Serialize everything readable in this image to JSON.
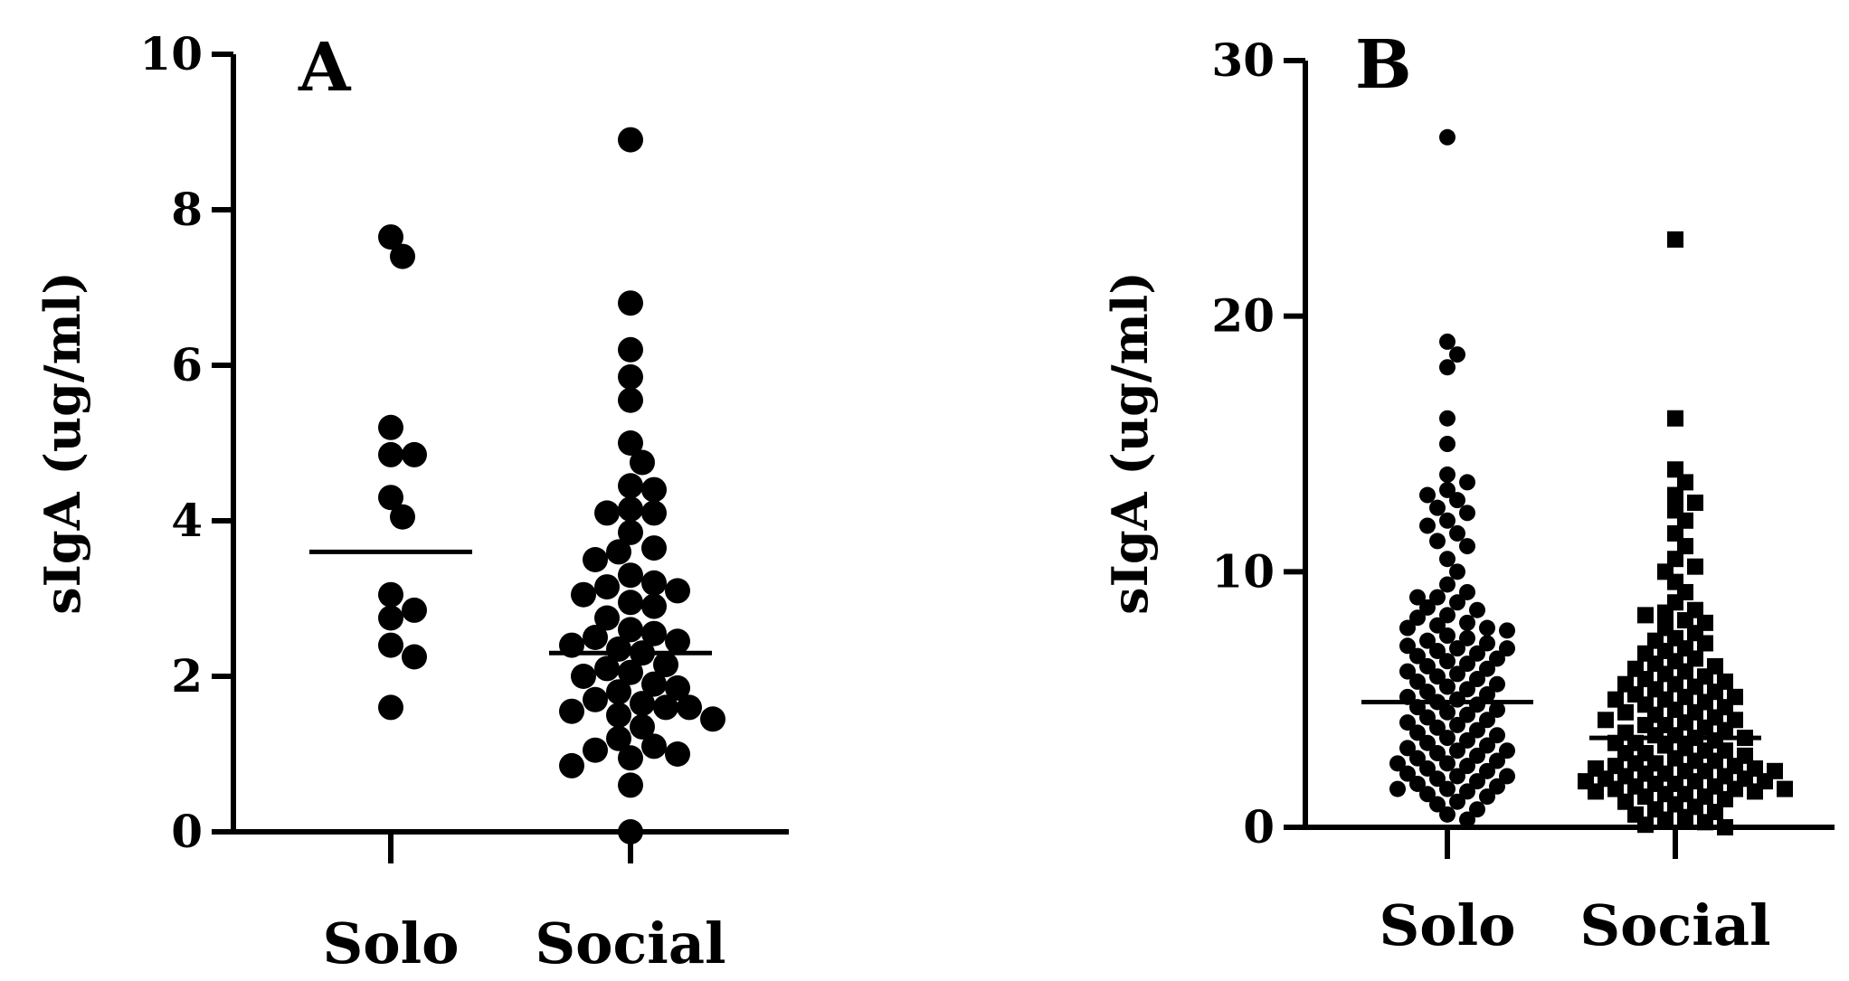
{
  "chart_data": [
    {
      "type": "scatter",
      "panel_label": "A",
      "ylabel": "sIgA (ug/ml)",
      "xlabel": "",
      "categories": [
        "Solo",
        "Social"
      ],
      "ylim": [
        0,
        10
      ],
      "yticks": [
        0,
        2,
        4,
        6,
        8,
        10
      ],
      "grid": false,
      "series": [
        {
          "category": "Solo",
          "marker": "circle",
          "mean": 3.6,
          "values": [
            7.65,
            7.4,
            5.2,
            4.85,
            4.85,
            4.3,
            4.05,
            3.05,
            2.85,
            2.75,
            2.4,
            2.25,
            1.6
          ]
        },
        {
          "category": "Social",
          "marker": "circle",
          "mean": 2.3,
          "values": [
            8.9,
            6.8,
            6.2,
            5.85,
            5.55,
            5.0,
            4.75,
            4.45,
            4.4,
            4.15,
            4.1,
            4.1,
            3.85,
            3.65,
            3.6,
            3.5,
            3.3,
            3.2,
            3.15,
            3.1,
            3.05,
            2.95,
            2.9,
            2.75,
            2.6,
            2.55,
            2.5,
            2.45,
            2.4,
            2.35,
            2.3,
            2.15,
            2.1,
            2.05,
            2.0,
            1.9,
            1.85,
            1.8,
            1.7,
            1.65,
            1.6,
            1.6,
            1.55,
            1.5,
            1.45,
            1.35,
            1.2,
            1.1,
            1.05,
            1.0,
            0.95,
            0.85,
            0.6,
            0.0
          ]
        }
      ]
    },
    {
      "type": "scatter",
      "panel_label": "B",
      "ylabel": "sIgA (ug/ml)",
      "xlabel": "",
      "categories": [
        "Solo",
        "Social"
      ],
      "ylim": [
        0,
        30
      ],
      "yticks": [
        0,
        10,
        20,
        30
      ],
      "grid": false,
      "series": [
        {
          "category": "Solo",
          "marker": "circle",
          "mean": 4.9,
          "values": [
            27.0,
            19.0,
            18.5,
            18.0,
            16.0,
            15.0,
            13.8,
            13.5,
            13.2,
            13.0,
            12.8,
            12.5,
            12.3,
            12.0,
            11.8,
            11.5,
            11.2,
            11.0,
            10.5,
            10.0,
            9.5,
            9.2,
            9.0,
            9.0,
            8.8,
            8.6,
            8.5,
            8.3,
            8.2,
            8.0,
            7.9,
            7.8,
            7.8,
            7.7,
            7.5,
            7.4,
            7.3,
            7.2,
            7.1,
            7.0,
            7.0,
            6.9,
            6.8,
            6.7,
            6.6,
            6.5,
            6.4,
            6.3,
            6.2,
            6.1,
            6.0,
            5.9,
            5.8,
            5.7,
            5.6,
            5.5,
            5.4,
            5.3,
            5.2,
            5.1,
            5.0,
            4.9,
            4.8,
            4.7,
            4.6,
            4.5,
            4.4,
            4.3,
            4.2,
            4.1,
            4.0,
            3.9,
            3.8,
            3.7,
            3.6,
            3.5,
            3.4,
            3.3,
            3.2,
            3.1,
            3.0,
            3.0,
            2.9,
            2.8,
            2.7,
            2.6,
            2.5,
            2.5,
            2.4,
            2.3,
            2.2,
            2.1,
            2.0,
            2.0,
            1.9,
            1.8,
            1.7,
            1.6,
            1.5,
            1.5,
            1.4,
            1.3,
            1.2,
            1.0,
            0.9,
            0.7,
            0.5,
            0.3
          ],
          "note_marker_size": "small"
        },
        {
          "category": "Social",
          "marker": "square",
          "mean": 3.5,
          "values": [
            23.0,
            16.0,
            14.0,
            13.5,
            13.0,
            12.7,
            12.4,
            12.0,
            11.5,
            11.0,
            10.5,
            10.2,
            10.0,
            9.6,
            9.2,
            8.8,
            8.5,
            8.3,
            8.1,
            8.0,
            7.8,
            7.6,
            7.4,
            7.2,
            7.0,
            6.9,
            6.8,
            6.6,
            6.5,
            6.4,
            6.3,
            6.2,
            6.0,
            5.9,
            5.8,
            5.7,
            5.6,
            5.5,
            5.4,
            5.3,
            5.2,
            5.1,
            5.0,
            5.0,
            4.9,
            4.8,
            4.7,
            4.6,
            4.5,
            4.5,
            4.4,
            4.3,
            4.2,
            4.1,
            4.0,
            4.0,
            3.9,
            3.8,
            3.7,
            3.6,
            3.5,
            3.5,
            3.4,
            3.3,
            3.2,
            3.1,
            3.0,
            3.0,
            2.9,
            2.8,
            2.7,
            2.6,
            2.5,
            2.5,
            2.4,
            2.4,
            2.3,
            2.3,
            2.2,
            2.2,
            2.1,
            2.1,
            2.0,
            2.0,
            1.9,
            1.9,
            1.8,
            1.8,
            1.7,
            1.7,
            1.6,
            1.6,
            1.5,
            1.5,
            1.4,
            1.4,
            1.3,
            1.3,
            1.2,
            1.1,
            1.0,
            0.9,
            0.8,
            0.7,
            0.6,
            0.5,
            0.4,
            0.3,
            0.2,
            0.1,
            0.0,
            3.6,
            3.3,
            2.9,
            2.6,
            2.2,
            1.8,
            1.5,
            1.2,
            4.2,
            5.1,
            5.6,
            6.1,
            7.3,
            8.4
          ]
        }
      ]
    }
  ]
}
